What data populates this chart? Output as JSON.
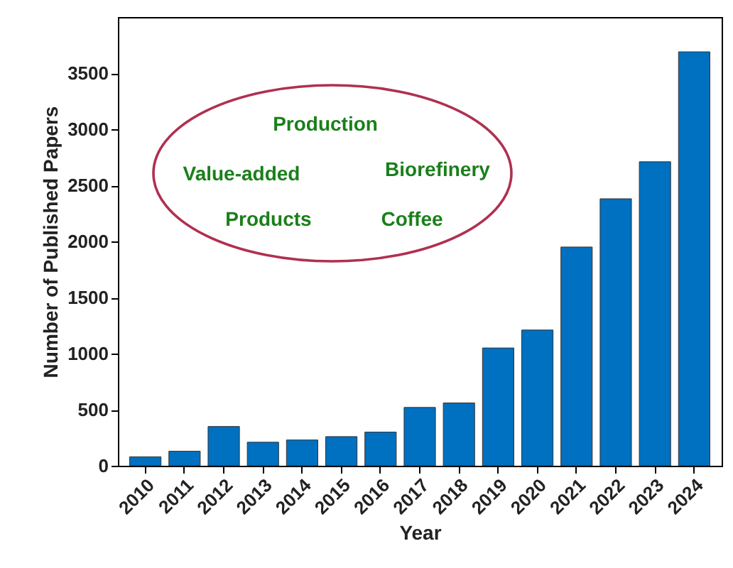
{
  "chart_data": {
    "type": "bar",
    "xlabel": "Year",
    "ylabel": "Number of Published Papers",
    "categories": [
      "2010",
      "2011",
      "2012",
      "2013",
      "2014",
      "2015",
      "2016",
      "2017",
      "2018",
      "2019",
      "2020",
      "2021",
      "2022",
      "2023",
      "2024"
    ],
    "values": [
      80,
      130,
      350,
      210,
      230,
      260,
      300,
      520,
      560,
      1050,
      1210,
      1950,
      2380,
      2710,
      3690
    ],
    "color": "#0070c0",
    "ylim": [
      0,
      4000
    ],
    "yticks": [
      0,
      500,
      1000,
      1500,
      2000,
      2500,
      3000,
      3500
    ],
    "annotations": [
      "Production",
      "Value-added",
      "Biorefinery",
      "Products",
      "Coffee"
    ]
  }
}
